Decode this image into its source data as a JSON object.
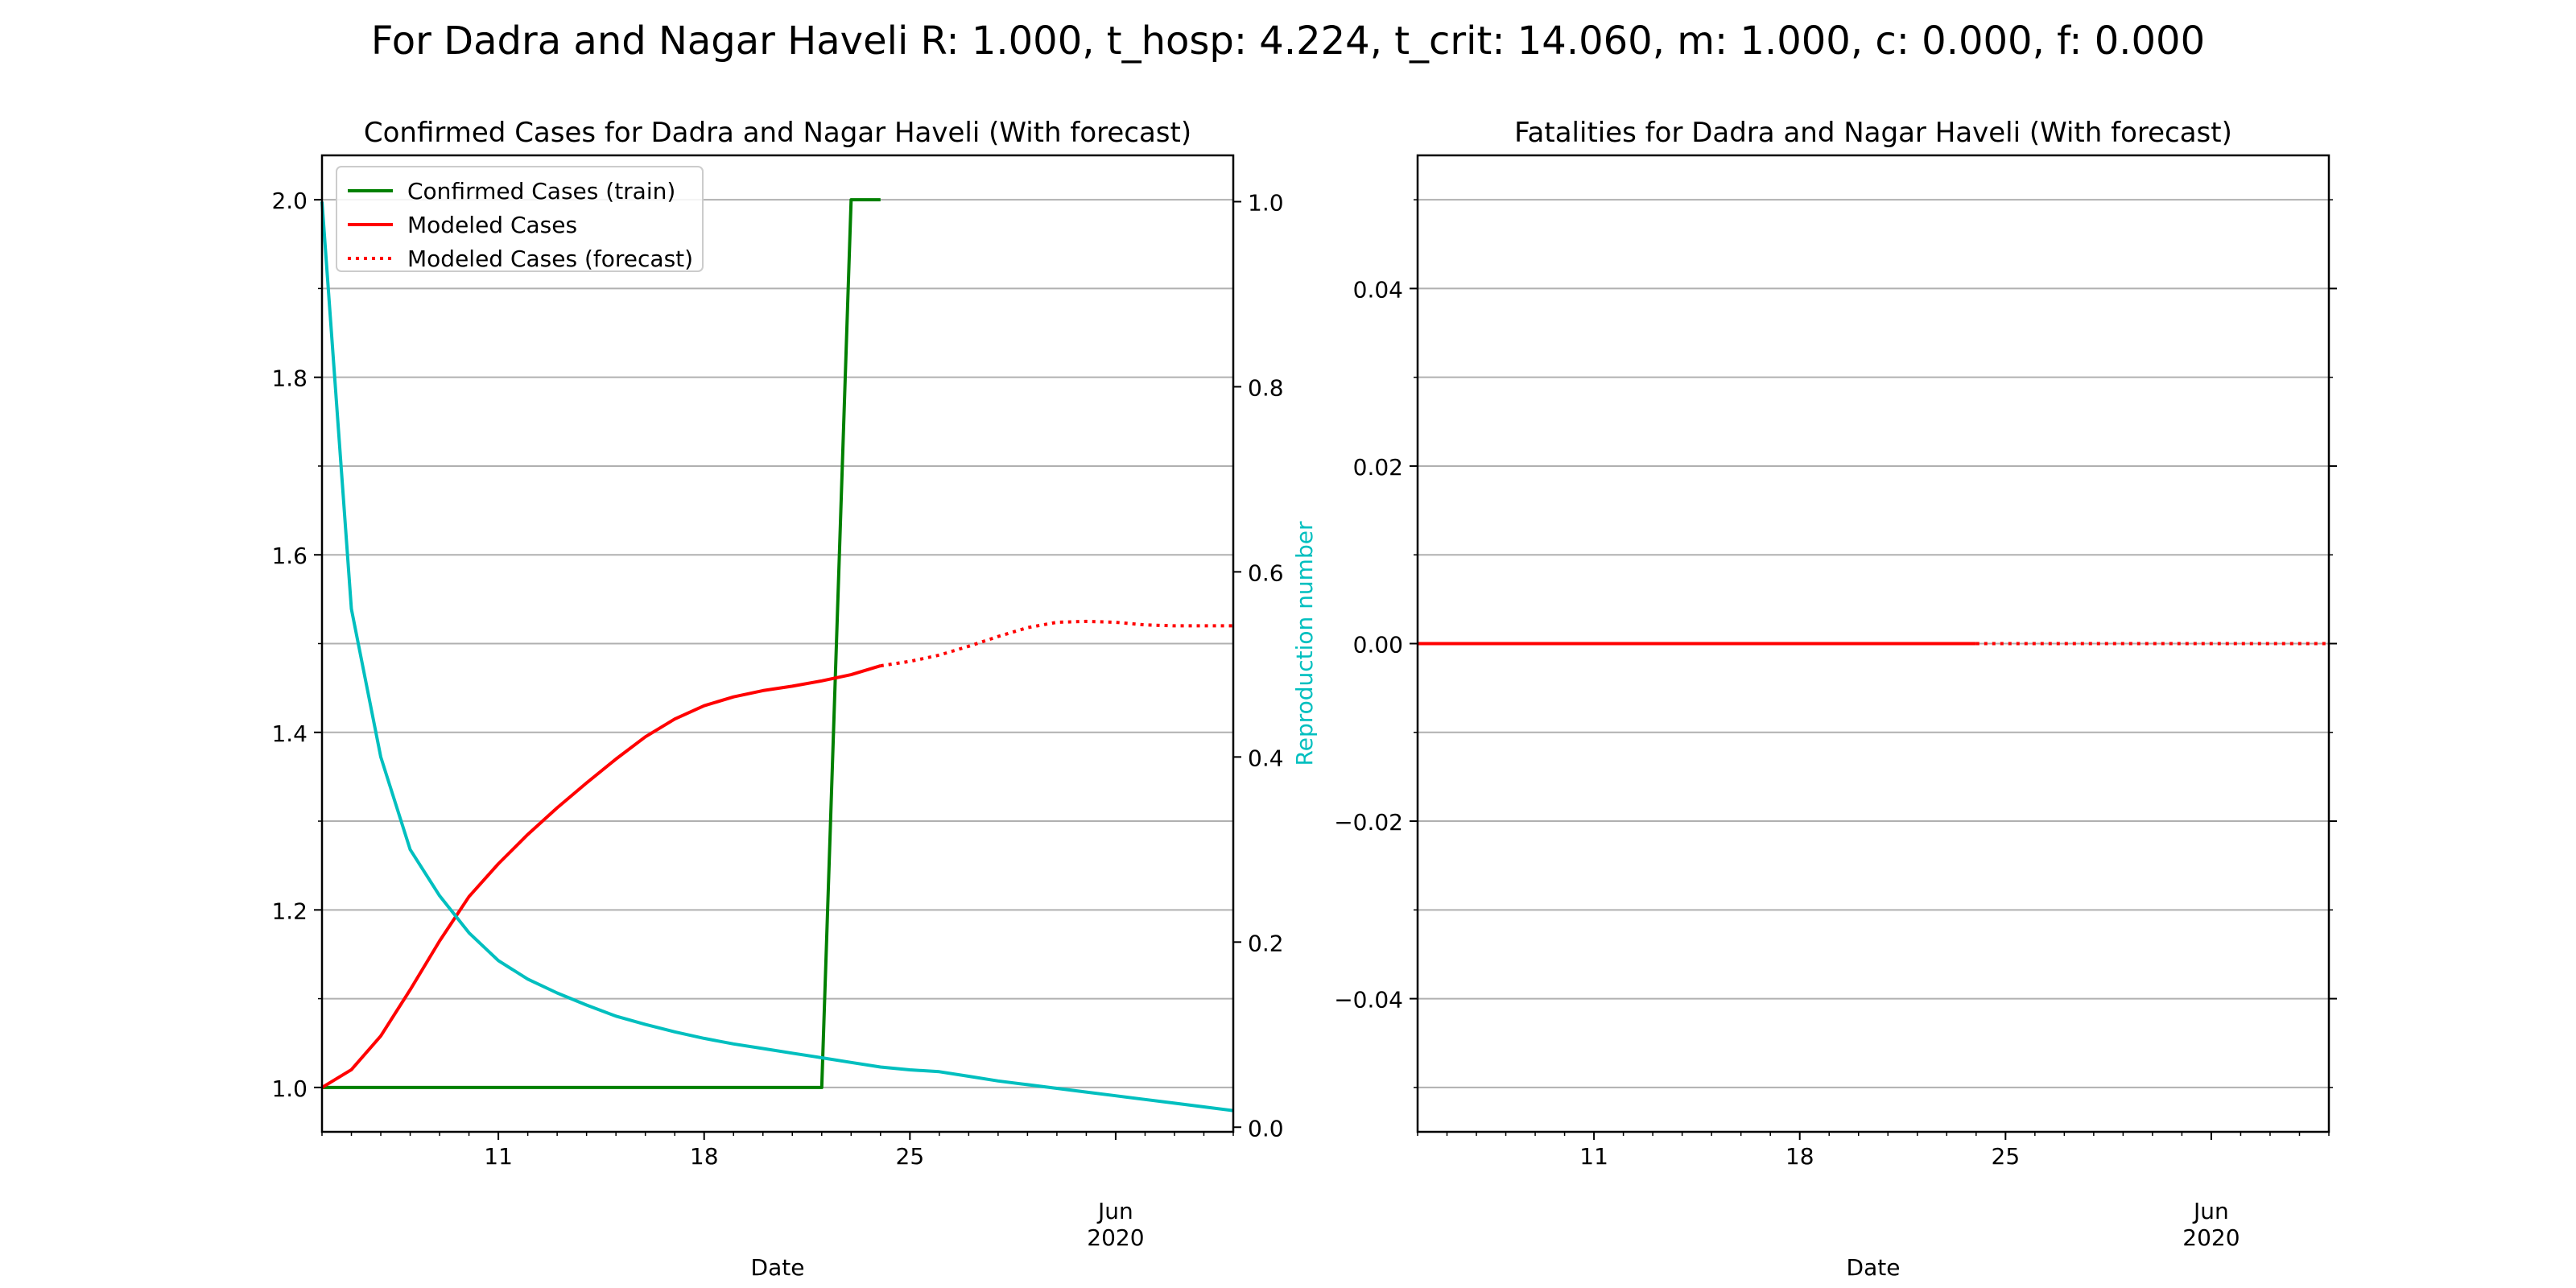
{
  "suptitle": "For Dadra and Nagar Haveli  R: 1.000, t_hosp: 4.224, t_crit: 14.060, m: 1.000, c: 0.000, f: 0.000",
  "colors": {
    "train": "#008000",
    "model": "#ff0000",
    "repro": "#00bfbf",
    "grid": "#b0b0b0",
    "axis": "#000000"
  },
  "chart_data": [
    {
      "type": "line",
      "title": "Confirmed Cases for Dadra and Nagar Haveli (With forecast)",
      "xlabel": "Date",
      "ylabel": "",
      "y2label": "Reproduction number",
      "x_range": [
        "2020-05-05",
        "2020-06-05"
      ],
      "ylim": [
        0.95,
        2.05
      ],
      "y2lim": [
        -0.005,
        1.05
      ],
      "grid": true,
      "legend_position": "upper left",
      "x_major_ticks": [
        {
          "date": "2020-05-11",
          "label": "11"
        },
        {
          "date": "2020-05-18",
          "label": "18"
        },
        {
          "date": "2020-05-25",
          "label": "25"
        },
        {
          "date": "2020-06-01",
          "label": "Jun\n2020"
        }
      ],
      "yticks": [
        "1.0",
        "1.2",
        "1.4",
        "1.6",
        "1.8",
        "2.0"
      ],
      "y2ticks": [
        "0.0",
        "0.2",
        "0.4",
        "0.6",
        "0.8",
        "1.0"
      ],
      "series": [
        {
          "name": "Confirmed Cases (train)",
          "axis": "left",
          "color": "#008000",
          "style": "solid",
          "x": [
            "2020-05-05",
            "2020-05-06",
            "2020-05-07",
            "2020-05-08",
            "2020-05-09",
            "2020-05-10",
            "2020-05-11",
            "2020-05-12",
            "2020-05-13",
            "2020-05-14",
            "2020-05-15",
            "2020-05-16",
            "2020-05-17",
            "2020-05-18",
            "2020-05-19",
            "2020-05-20",
            "2020-05-21",
            "2020-05-22",
            "2020-05-23",
            "2020-05-24"
          ],
          "y": [
            1,
            1,
            1,
            1,
            1,
            1,
            1,
            1,
            1,
            1,
            1,
            1,
            1,
            1,
            1,
            1,
            1,
            1,
            2,
            2
          ]
        },
        {
          "name": "Modeled Cases",
          "axis": "left",
          "color": "#ff0000",
          "style": "solid",
          "x": [
            "2020-05-05",
            "2020-05-06",
            "2020-05-07",
            "2020-05-08",
            "2020-05-09",
            "2020-05-10",
            "2020-05-11",
            "2020-05-12",
            "2020-05-13",
            "2020-05-14",
            "2020-05-15",
            "2020-05-16",
            "2020-05-17",
            "2020-05-18",
            "2020-05-19",
            "2020-05-20",
            "2020-05-21",
            "2020-05-22",
            "2020-05-23",
            "2020-05-24"
          ],
          "y": [
            1.0,
            1.02,
            1.058,
            1.11,
            1.165,
            1.215,
            1.252,
            1.285,
            1.315,
            1.343,
            1.37,
            1.395,
            1.415,
            1.43,
            1.44,
            1.447,
            1.452,
            1.458,
            1.465,
            1.475
          ]
        },
        {
          "name": "Modeled Cases (forecast)",
          "axis": "left",
          "color": "#ff0000",
          "style": "dotted",
          "x": [
            "2020-05-24",
            "2020-05-25",
            "2020-05-26",
            "2020-05-27",
            "2020-05-28",
            "2020-05-29",
            "2020-05-30",
            "2020-05-31",
            "2020-06-01",
            "2020-06-02",
            "2020-06-03",
            "2020-06-04",
            "2020-06-05"
          ],
          "y": [
            1.475,
            1.48,
            1.487,
            1.497,
            1.508,
            1.518,
            1.524,
            1.525,
            1.524,
            1.521,
            1.52,
            1.52,
            1.52
          ]
        },
        {
          "name": "",
          "axis": "right",
          "color": "#00bfbf",
          "style": "solid",
          "x": [
            "2020-05-05",
            "2020-05-06",
            "2020-05-07",
            "2020-05-08",
            "2020-05-09",
            "2020-05-10",
            "2020-05-11",
            "2020-05-12",
            "2020-05-13",
            "2020-05-14",
            "2020-05-15",
            "2020-05-16",
            "2020-05-17",
            "2020-05-18",
            "2020-05-19",
            "2020-05-20",
            "2020-05-21",
            "2020-05-22",
            "2020-05-23",
            "2020-05-24",
            "2020-05-25",
            "2020-05-26",
            "2020-05-27",
            "2020-05-28",
            "2020-05-29",
            "2020-05-30",
            "2020-05-31",
            "2020-06-01",
            "2020-06-02",
            "2020-06-03",
            "2020-06-04",
            "2020-06-05"
          ],
          "y": [
            1.0,
            0.56,
            0.4,
            0.3,
            0.25,
            0.21,
            0.18,
            0.16,
            0.145,
            0.132,
            0.12,
            0.111,
            0.103,
            0.096,
            0.09,
            0.085,
            0.08,
            0.075,
            0.07,
            0.065,
            0.062,
            0.06,
            0.055,
            0.05,
            0.046,
            0.042,
            0.038,
            0.034,
            0.03,
            0.026,
            0.022,
            0.018
          ]
        }
      ]
    },
    {
      "type": "line",
      "title": "Fatalities for Dadra and Nagar Haveli (With forecast)",
      "xlabel": "Date",
      "ylabel": "",
      "x_range": [
        "2020-05-05",
        "2020-06-05"
      ],
      "ylim": [
        -0.055,
        0.055
      ],
      "grid": true,
      "x_major_ticks": [
        {
          "date": "2020-05-11",
          "label": "11"
        },
        {
          "date": "2020-05-18",
          "label": "18"
        },
        {
          "date": "2020-05-25",
          "label": "25"
        },
        {
          "date": "2020-06-01",
          "label": "Jun\n2020"
        }
      ],
      "yticks": [
        "−0.04",
        "−0.02",
        "0.00",
        "0.02",
        "0.04"
      ],
      "series": [
        {
          "name": "",
          "axis": "left",
          "color": "#ff0000",
          "style": "solid",
          "x": [
            "2020-05-05",
            "2020-05-24"
          ],
          "y": [
            0,
            0
          ]
        },
        {
          "name": "",
          "axis": "left",
          "color": "#ff0000",
          "style": "dotted",
          "x": [
            "2020-05-24",
            "2020-06-05"
          ],
          "y": [
            0,
            0
          ]
        }
      ]
    }
  ]
}
